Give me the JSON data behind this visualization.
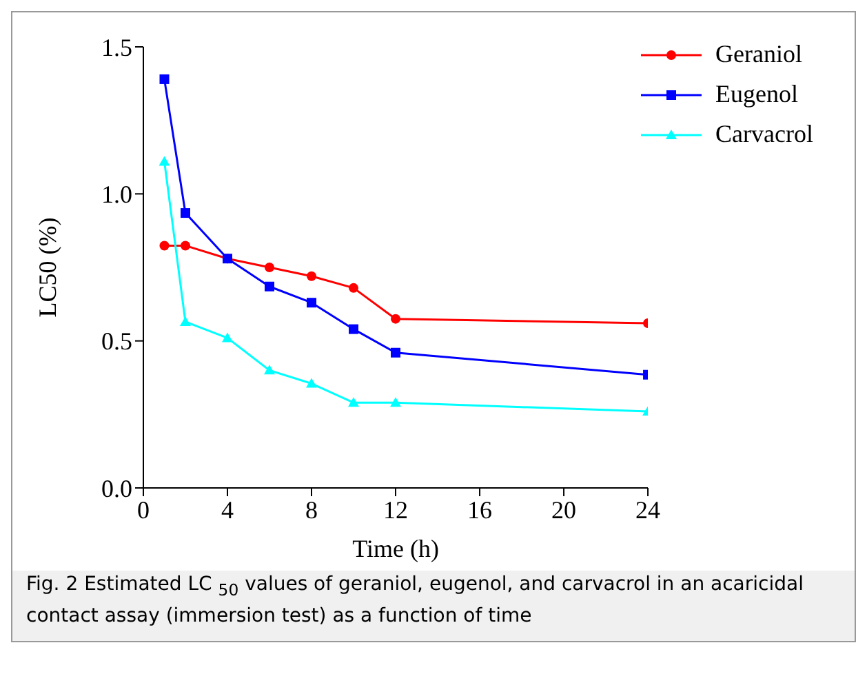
{
  "chart_data": {
    "type": "line",
    "xlabel": "Time (h)",
    "ylabel": "LC50 (%)",
    "x": [
      1,
      2,
      4,
      6,
      8,
      10,
      12,
      24
    ],
    "xlim": [
      0,
      24
    ],
    "xticks": [
      0,
      4,
      8,
      12,
      16,
      20,
      24
    ],
    "ylim": [
      0,
      1.5
    ],
    "yticks": [
      {
        "value": 0,
        "label": "0.0"
      },
      0.5,
      {
        "value": 1,
        "label": "1.0"
      },
      1.5
    ],
    "grid": false,
    "legend": "top right",
    "line_style": "solid",
    "series": [
      {
        "name": "Geraniol",
        "color": "#ff0000",
        "marker": "circle",
        "values": [
          0.824,
          0.824,
          0.78,
          0.75,
          0.72,
          0.68,
          0.575,
          0.56
        ]
      },
      {
        "name": "Eugenol",
        "color": "#0000ff",
        "marker": "square",
        "values": [
          1.39,
          0.935,
          0.78,
          0.685,
          0.63,
          0.54,
          0.46,
          0.385
        ]
      },
      {
        "name": "Carvacrol",
        "color": "#00ffff",
        "marker": "triangle",
        "values": [
          1.11,
          0.565,
          0.51,
          0.4,
          0.355,
          0.29,
          0.29,
          0.26
        ]
      }
    ],
    "annotations": [
      "Fig. 2  Estimated LC $_{50}$ values of geraniol, eugenol, and carvacrol in an acaricidal contact assay (immersion test) as a function of time"
    ]
  }
}
